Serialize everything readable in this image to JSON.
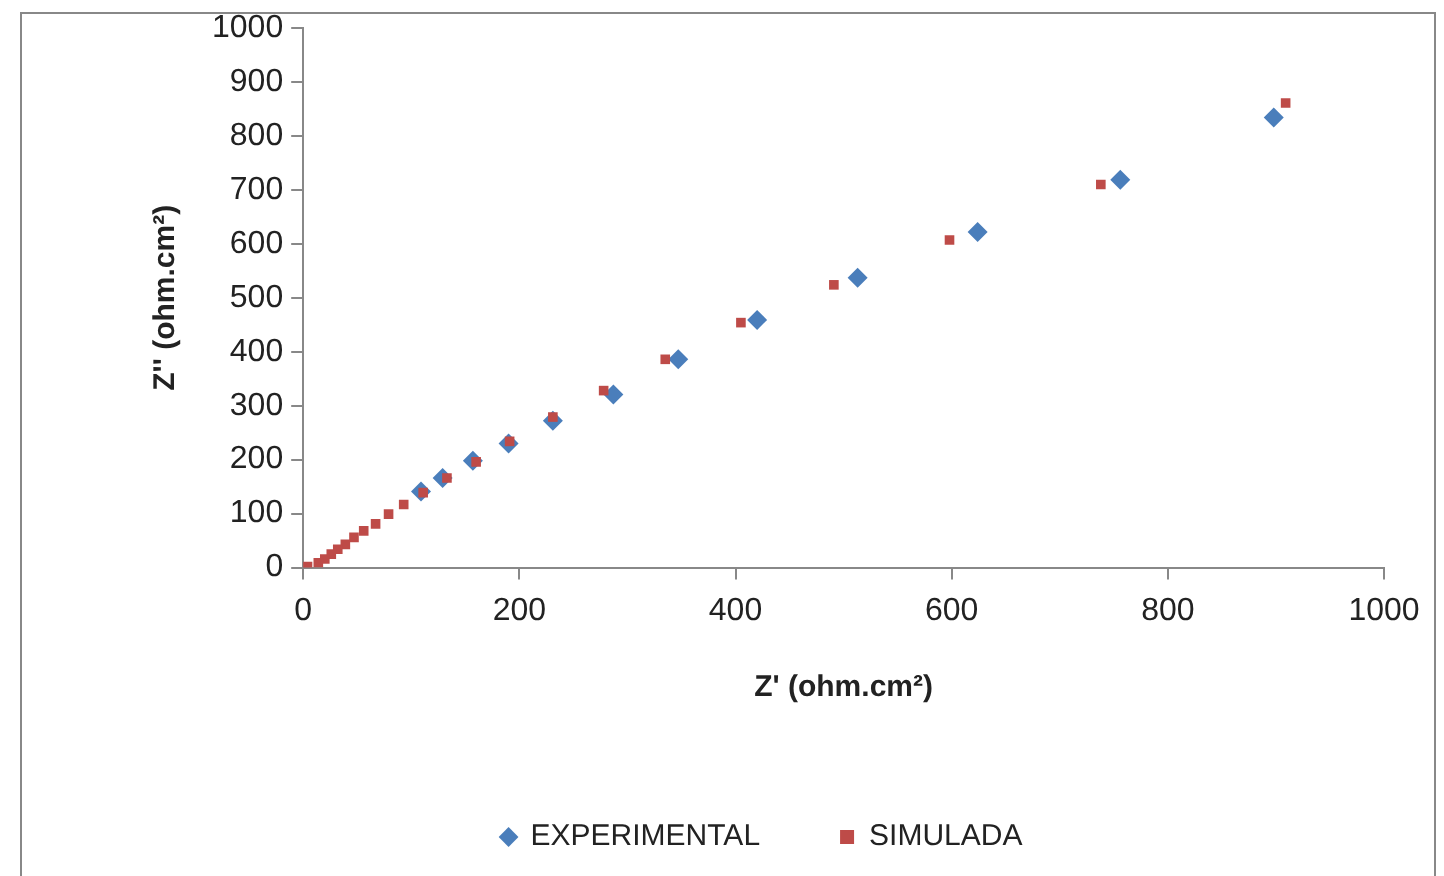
{
  "chart_data": {
    "type": "scatter",
    "xlabel": "Z' (ohm.cm²)",
    "ylabel": "Z'' (ohm.cm²)",
    "xlim": [
      0,
      1000
    ],
    "xticks": [
      0,
      200,
      400,
      600,
      800,
      1000
    ],
    "ylim": [
      0,
      1000
    ],
    "yticks": [
      0,
      100,
      200,
      300,
      400,
      500,
      600,
      700,
      800,
      900,
      1000
    ],
    "grid": false,
    "legend": "bottom",
    "series": [
      {
        "name": "EXPERIMENTAL",
        "color": "#4a7ebb",
        "marker": "diamond",
        "x": [
          898,
          756,
          624,
          513,
          420,
          347,
          287,
          231,
          190,
          157,
          129,
          109
        ],
        "values": [
          834,
          719,
          622,
          537,
          459,
          386,
          321,
          272,
          230,
          198,
          166,
          141
        ]
      },
      {
        "name": "SIMULADA",
        "color": "#be4b48",
        "marker": "square",
        "x": [
          909,
          738,
          598,
          491,
          405,
          335,
          278,
          231,
          191,
          160,
          133,
          111,
          93,
          79,
          67,
          56,
          47,
          39,
          32,
          26,
          20,
          14,
          4
        ],
        "values": [
          861,
          710,
          607,
          524,
          454,
          386,
          328,
          279,
          234,
          196,
          166,
          139,
          117,
          99,
          81,
          68,
          56,
          43,
          34,
          25,
          16,
          9,
          2
        ]
      }
    ]
  }
}
